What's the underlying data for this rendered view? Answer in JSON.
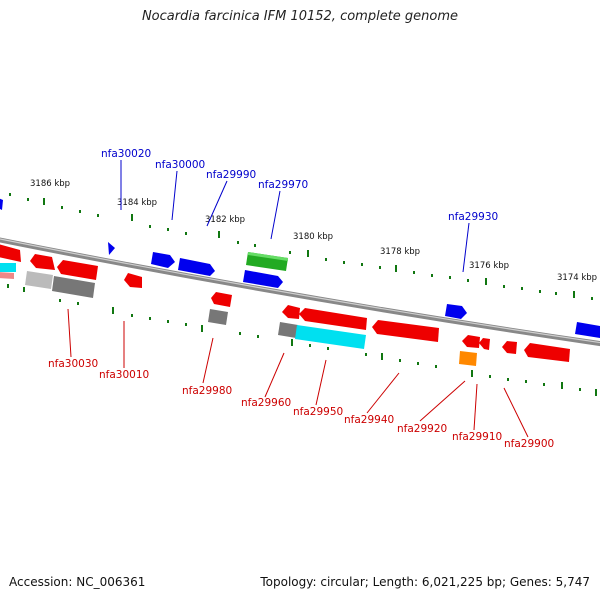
{
  "title": "Nocardia farcinica IFM 10152, complete genome",
  "footer": {
    "accession": "Accession: NC_006361",
    "summary": "Topology: circular; Length: 6,021,225 bp; Genes: 5,747"
  },
  "colors": {
    "red": "#ee0000",
    "blue": "#0000ee",
    "green": "#22aa22",
    "cyan": "#00e0f0",
    "gray": "#777777",
    "lightgray": "#bbbbbb",
    "orange": "#ff8800",
    "tick": "#117711",
    "label_top": "#0000cc",
    "label_bottom": "#cc0000"
  },
  "kbp_labels": [
    "3186 kbp",
    "3184 kbp",
    "3182 kbp",
    "3180 kbp",
    "3178 kbp",
    "3176 kbp",
    "3174 kbp"
  ],
  "genes_top_labels": [
    "nfa30020",
    "nfa30000",
    "nfa29990",
    "nfa29970",
    "nfa29930"
  ],
  "genes_bottom_labels": [
    "nfa30030",
    "nfa30010",
    "nfa29980",
    "nfa29960",
    "nfa29950",
    "nfa29940",
    "nfa29920",
    "nfa29910",
    "nfa29900"
  ]
}
